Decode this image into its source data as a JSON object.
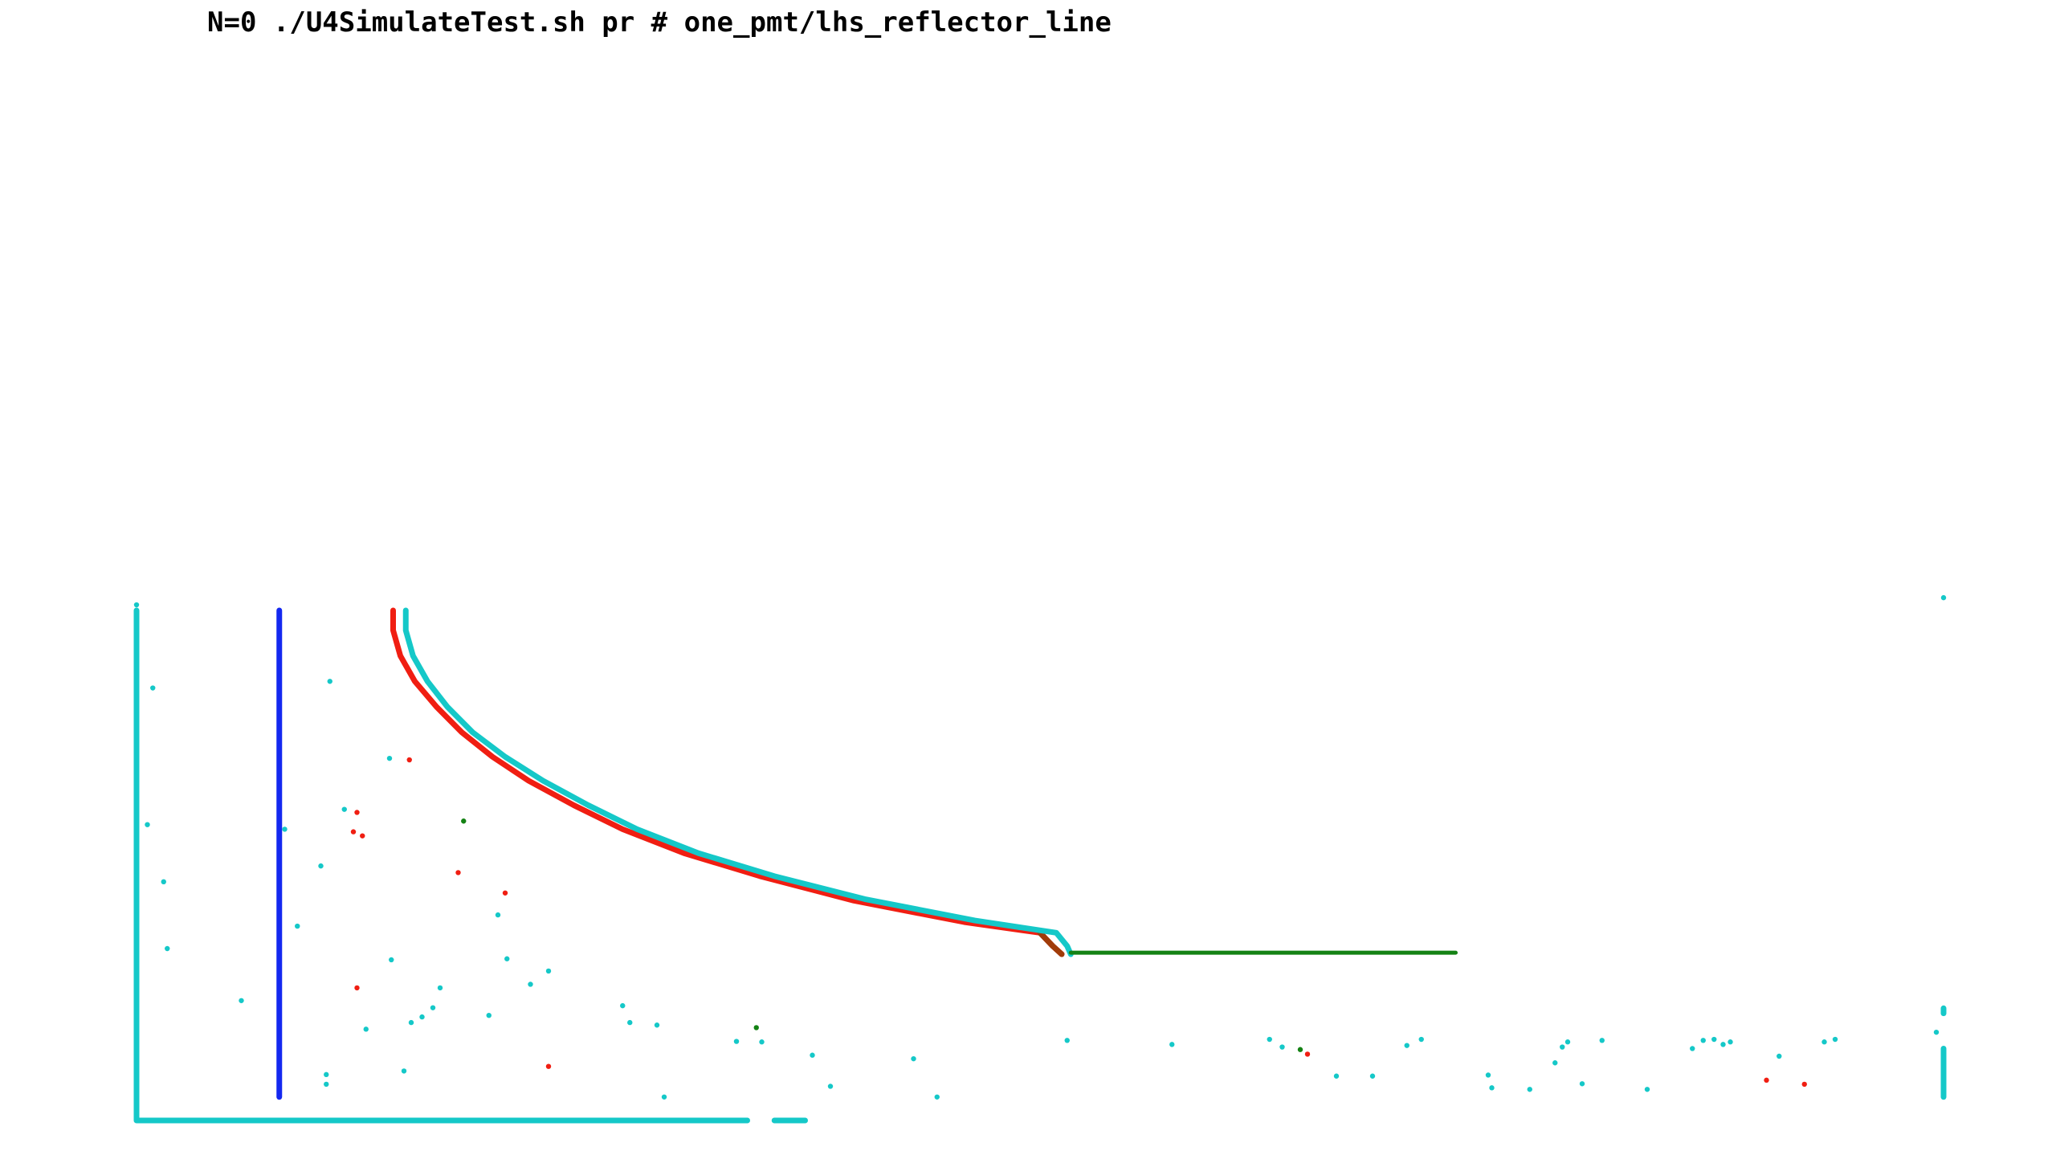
{
  "title": "N=0 ./U4SimulateTest.sh pr # one_pmt/lhs_reflector_line",
  "chart_data": {
    "type": "scatter",
    "title": "N=0 ./U4SimulateTest.sh pr # one_pmt/lhs_reflector_line",
    "xlabel": "",
    "ylabel": "",
    "axes_visible": false,
    "grid": false,
    "xlim": [
      0,
      100
    ],
    "ylim": [
      0,
      100
    ],
    "colors": {
      "cyan": "#15c8c8",
      "red": "#f01e12",
      "blue": "#1428f0",
      "green": "#148214",
      "brown": "#a03c0a"
    },
    "lines": [
      {
        "name": "cyan-left-wall",
        "color": "cyan",
        "points": [
          [
            0.0,
            100.0
          ],
          [
            0.0,
            0.0
          ],
          [
            33.8,
            0.0
          ]
        ]
      },
      {
        "name": "cyan-bottom-segment",
        "color": "cyan",
        "points": [
          [
            35.3,
            0.0
          ],
          [
            37.0,
            0.0
          ]
        ]
      },
      {
        "name": "blue-vertical",
        "color": "blue",
        "points": [
          [
            7.9,
            100.0
          ],
          [
            7.9,
            4.6
          ]
        ]
      },
      {
        "name": "red-arc",
        "color": "red",
        "points": [
          [
            14.2,
            100.0
          ],
          [
            14.2,
            96.1
          ],
          [
            14.6,
            91.1
          ],
          [
            15.4,
            86.1
          ],
          [
            16.6,
            81.1
          ],
          [
            18.0,
            76.1
          ],
          [
            19.7,
            71.3
          ],
          [
            21.7,
            66.6
          ],
          [
            24.2,
            61.8
          ],
          [
            26.9,
            57.1
          ],
          [
            30.3,
            52.4
          ],
          [
            34.5,
            47.9
          ],
          [
            39.7,
            43.1
          ],
          [
            45.8,
            38.9
          ],
          [
            50.0,
            36.8
          ],
          [
            50.7,
            34.2
          ],
          [
            51.2,
            32.6
          ]
        ]
      },
      {
        "name": "brown-tail",
        "color": "brown",
        "points": [
          [
            50.0,
            36.8
          ],
          [
            50.7,
            34.2
          ],
          [
            51.2,
            32.6
          ]
        ]
      },
      {
        "name": "cyan-arc",
        "color": "cyan",
        "points": [
          [
            14.9,
            100.0
          ],
          [
            14.9,
            96.1
          ],
          [
            15.3,
            91.1
          ],
          [
            16.1,
            86.1
          ],
          [
            17.2,
            81.1
          ],
          [
            18.6,
            76.1
          ],
          [
            20.4,
            71.3
          ],
          [
            22.5,
            66.6
          ],
          [
            25.0,
            61.8
          ],
          [
            27.7,
            57.1
          ],
          [
            31.1,
            52.4
          ],
          [
            35.3,
            47.9
          ],
          [
            40.3,
            43.4
          ],
          [
            46.4,
            39.2
          ],
          [
            50.9,
            36.8
          ],
          [
            51.5,
            34.2
          ],
          [
            51.7,
            32.6
          ]
        ]
      },
      {
        "name": "green-line",
        "color": "green",
        "points": [
          [
            51.7,
            32.9
          ],
          [
            73.0,
            32.9
          ]
        ]
      },
      {
        "name": "cyan-right-pillar",
        "color": "cyan",
        "points": [
          [
            100.0,
            14.1
          ],
          [
            100.0,
            4.6
          ]
        ]
      },
      {
        "name": "cyan-right-stub",
        "color": "cyan",
        "points": [
          [
            100.0,
            22.0
          ],
          [
            100.0,
            21.0
          ]
        ]
      }
    ],
    "series": [
      {
        "name": "cyan-points",
        "color": "cyan",
        "points": [
          [
            0.0,
            101.1
          ],
          [
            0.9,
            84.8
          ],
          [
            0.6,
            58.0
          ],
          [
            1.5,
            46.8
          ],
          [
            1.7,
            33.7
          ],
          [
            5.8,
            23.5
          ],
          [
            8.2,
            57.1
          ],
          [
            8.9,
            38.1
          ],
          [
            10.2,
            49.9
          ],
          [
            10.7,
            86.1
          ],
          [
            11.5,
            61.0
          ],
          [
            10.5,
            9.0
          ],
          [
            10.5,
            7.1
          ],
          [
            12.7,
            17.9
          ],
          [
            14.1,
            31.5
          ],
          [
            14.0,
            71.0
          ],
          [
            14.8,
            9.7
          ],
          [
            15.2,
            19.2
          ],
          [
            15.8,
            20.3
          ],
          [
            16.4,
            22.1
          ],
          [
            16.8,
            26.0
          ],
          [
            19.5,
            20.6
          ],
          [
            20.0,
            40.3
          ],
          [
            20.5,
            31.7
          ],
          [
            21.8,
            26.7
          ],
          [
            22.8,
            29.3
          ],
          [
            26.9,
            22.5
          ],
          [
            27.3,
            19.2
          ],
          [
            28.8,
            18.7
          ],
          [
            29.2,
            4.6
          ],
          [
            33.2,
            15.5
          ],
          [
            34.6,
            15.4
          ],
          [
            37.4,
            12.8
          ],
          [
            38.4,
            6.7
          ],
          [
            43.0,
            12.1
          ],
          [
            44.3,
            4.6
          ],
          [
            51.5,
            15.7
          ],
          [
            57.3,
            14.9
          ],
          [
            62.7,
            15.9
          ],
          [
            63.4,
            14.4
          ],
          [
            70.3,
            14.7
          ],
          [
            71.1,
            15.9
          ],
          [
            77.1,
            6.1
          ],
          [
            78.9,
            14.4
          ],
          [
            79.2,
            15.4
          ],
          [
            81.1,
            15.7
          ],
          [
            83.6,
            6.1
          ],
          [
            86.7,
            15.7
          ],
          [
            87.3,
            15.9
          ],
          [
            87.8,
            14.9
          ],
          [
            90.9,
            12.6
          ],
          [
            93.4,
            15.4
          ],
          [
            99.6,
            17.3
          ],
          [
            100.0,
            102.5
          ],
          [
            66.4,
            8.7
          ],
          [
            68.4,
            8.7
          ],
          [
            74.8,
            8.9
          ],
          [
            75.0,
            6.4
          ],
          [
            78.5,
            11.3
          ],
          [
            80.0,
            7.2
          ],
          [
            86.1,
            14.1
          ],
          [
            88.2,
            15.4
          ],
          [
            94.0,
            15.9
          ]
        ]
      },
      {
        "name": "red-points",
        "color": "red",
        "points": [
          [
            12.2,
            60.4
          ],
          [
            12.0,
            56.6
          ],
          [
            12.5,
            55.8
          ],
          [
            15.1,
            70.7
          ],
          [
            17.8,
            48.6
          ],
          [
            20.4,
            44.6
          ],
          [
            22.8,
            10.6
          ],
          [
            12.2,
            26.0
          ],
          [
            64.8,
            13.0
          ],
          [
            90.2,
            7.9
          ],
          [
            92.3,
            7.1
          ]
        ]
      },
      {
        "name": "green-points",
        "color": "green",
        "points": [
          [
            18.1,
            58.7
          ],
          [
            34.3,
            18.2
          ],
          [
            64.4,
            13.9
          ]
        ]
      }
    ]
  }
}
